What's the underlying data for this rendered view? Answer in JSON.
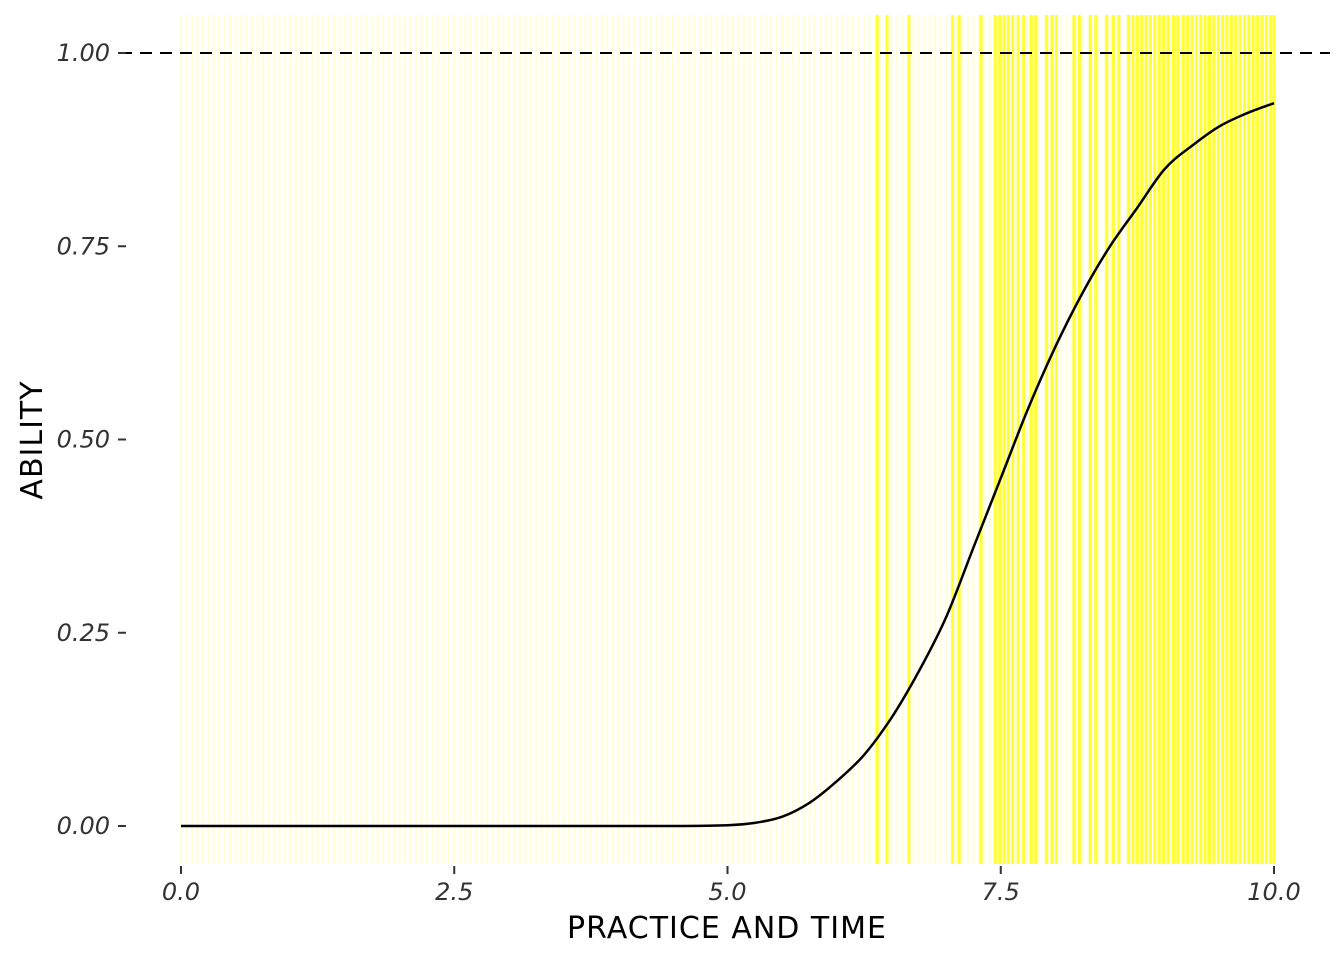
{
  "chart_data": {
    "type": "line",
    "title": "",
    "xlabel": "PRACTICE AND TIME",
    "ylabel": "ABILITY",
    "xlim": [
      0,
      10
    ],
    "ylim": [
      0,
      1
    ],
    "x_ticks": [
      "0.0",
      "2.5",
      "5.0",
      "7.5",
      "10.0"
    ],
    "y_ticks": [
      "0.00",
      "0.25",
      "0.50",
      "0.75",
      "1.00"
    ],
    "x_tick_values": [
      0,
      2.5,
      5,
      7.5,
      10
    ],
    "y_tick_values": [
      0,
      0.25,
      0.5,
      0.75,
      1
    ],
    "reference_line": {
      "y": 1.0,
      "style": "dashed",
      "color": "#000000"
    },
    "grid": false,
    "colors": {
      "curve": "#000000",
      "band_faint": "#ffffd6",
      "band_bright": "#ffff33",
      "tick_text": "#333333"
    },
    "series": [
      {
        "x": [
          0,
          1,
          2,
          3,
          4,
          4.5,
          5.0,
          5.25,
          5.5,
          5.75,
          6.0,
          6.25,
          6.5,
          6.75,
          7.0,
          7.25,
          7.5,
          7.75,
          8.0,
          8.25,
          8.5,
          8.75,
          9.0,
          9.25,
          9.5,
          9.75,
          10.0
        ],
        "values": [
          0,
          0,
          0,
          0,
          0,
          0,
          0.001,
          0.004,
          0.012,
          0.03,
          0.058,
          0.092,
          0.14,
          0.2,
          0.27,
          0.36,
          0.45,
          0.54,
          0.62,
          0.69,
          0.75,
          0.8,
          0.85,
          0.88,
          0.905,
          0.922,
          0.935
        ]
      }
    ],
    "bright_band_x": [
      6.37,
      6.46,
      6.66,
      7.06,
      7.12,
      7.32,
      7.45,
      7.49,
      7.53,
      7.57,
      7.61,
      7.66,
      7.71,
      7.78,
      7.82,
      7.92,
      7.97,
      8.01,
      8.17,
      8.22,
      8.32,
      8.37,
      8.47,
      8.53,
      8.58,
      8.67,
      8.71,
      8.75,
      8.79,
      8.83,
      8.87,
      8.91,
      8.95,
      8.99,
      9.03,
      9.08,
      9.12,
      9.17,
      9.21,
      9.25,
      9.29,
      9.33,
      9.37,
      9.41,
      9.45,
      9.49,
      9.53,
      9.57,
      9.61,
      9.65,
      9.69,
      9.73,
      9.77,
      9.81,
      9.85,
      9.89,
      9.93,
      9.97,
      10.0
    ],
    "faint_band_range": [
      0,
      10
    ],
    "faint_band_step": 0.05
  }
}
